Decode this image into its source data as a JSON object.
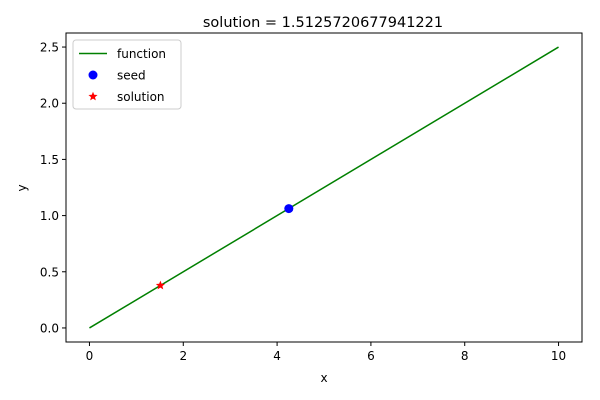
{
  "chart_data": {
    "type": "line",
    "title": "solution = 1.5125720677941221",
    "xlabel": "x",
    "ylabel": "y",
    "xlim": [
      -0.5,
      10.5
    ],
    "ylim": [
      -0.125,
      2.625
    ],
    "xticks": [
      0,
      2,
      4,
      6,
      8,
      10
    ],
    "yticks": [
      0.0,
      0.5,
      1.0,
      1.5,
      2.0,
      2.5
    ],
    "xtick_labels": [
      "0",
      "2",
      "4",
      "6",
      "8",
      "10"
    ],
    "ytick_labels": [
      "0.0",
      "0.5",
      "1.0",
      "1.5",
      "2.0",
      "2.5"
    ],
    "grid": false,
    "legend_position": "top-left",
    "series": [
      {
        "name": "function",
        "kind": "line",
        "color": "#008000",
        "x": [
          0,
          10
        ],
        "y": [
          0,
          2.5
        ]
      },
      {
        "name": "seed",
        "kind": "marker-circle",
        "color": "#0000ff",
        "x": [
          4.25
        ],
        "y": [
          1.0625
        ]
      },
      {
        "name": "solution",
        "kind": "marker-star",
        "color": "#ff0000",
        "x": [
          1.5125720677941221
        ],
        "y": [
          0.378143
        ]
      }
    ]
  }
}
